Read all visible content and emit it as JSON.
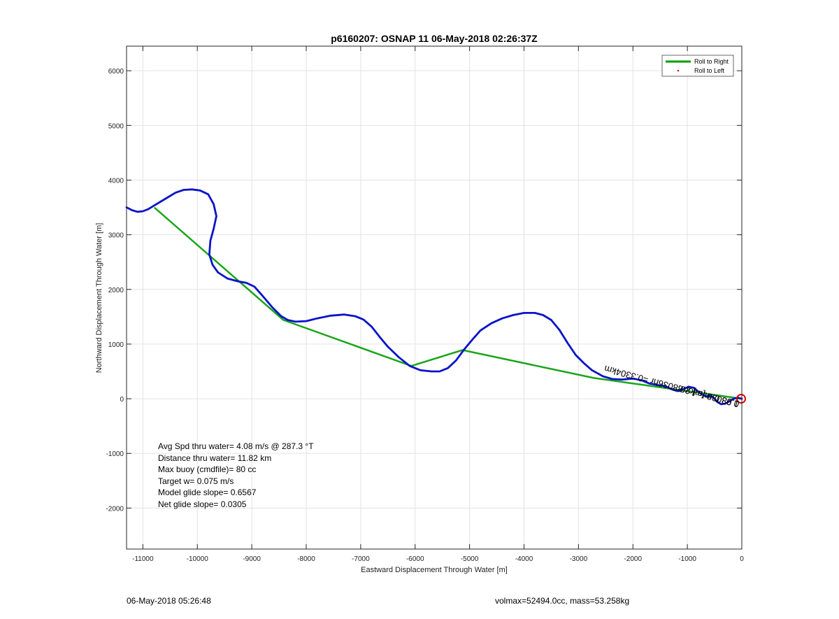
{
  "chart_data": {
    "type": "line",
    "title": "p6160207: OSNAP 11 06-May-2018 02:26:37Z",
    "xlabel": "Eastward Displacement Through Water [m]",
    "ylabel": "Northward Displacement Through Water [m]",
    "xlim": [
      -11300,
      0
    ],
    "ylim": [
      -2750,
      6450
    ],
    "xticks": [
      -11000,
      -10000,
      -9000,
      -8000,
      -7000,
      -6000,
      -5000,
      -4000,
      -3000,
      -2000,
      -1000,
      0
    ],
    "xtick_labels": [
      "-11000",
      "-10000",
      "-9000",
      "-8000",
      "-7000",
      "-6000",
      "-5000",
      "-4000",
      "-3000",
      "-2000",
      "-1000",
      "0"
    ],
    "yticks": [
      -2000,
      -1000,
      0,
      1000,
      2000,
      3000,
      4000,
      5000,
      6000
    ],
    "ytick_labels": [
      "-2000",
      "-1000",
      "0",
      "1000",
      "2000",
      "3000",
      "4000",
      "5000",
      "6000"
    ],
    "grid": true,
    "legend_position": "top-right",
    "legend": [
      {
        "label": "Roll to Right",
        "color": "#00a000",
        "marker": "line"
      },
      {
        "label": "Roll to Left",
        "color": "#ff0000",
        "marker": "dot"
      }
    ],
    "series": [
      {
        "name": "Roll to Right",
        "color": "#1aa51a",
        "points": [
          [
            -10780,
            3490
          ],
          [
            -8420,
            1440
          ],
          [
            -6070,
            600
          ],
          [
            -5130,
            890
          ],
          [
            -2720,
            380
          ],
          [
            0,
            0
          ]
        ]
      },
      {
        "color": "#0a14c8",
        "points": [
          [
            -11300,
            3500
          ],
          [
            -11200,
            3450
          ],
          [
            -11100,
            3420
          ],
          [
            -11000,
            3430
          ],
          [
            -10900,
            3470
          ],
          [
            -10800,
            3530
          ],
          [
            -10700,
            3590
          ],
          [
            -10550,
            3680
          ],
          [
            -10400,
            3770
          ],
          [
            -10250,
            3820
          ],
          [
            -10100,
            3830
          ],
          [
            -9950,
            3810
          ],
          [
            -9800,
            3740
          ],
          [
            -9700,
            3560
          ],
          [
            -9650,
            3340
          ],
          [
            -9700,
            3110
          ],
          [
            -9760,
            2890
          ],
          [
            -9780,
            2640
          ],
          [
            -9720,
            2450
          ],
          [
            -9620,
            2310
          ],
          [
            -9450,
            2200
          ],
          [
            -9260,
            2150
          ],
          [
            -9100,
            2120
          ],
          [
            -8950,
            2050
          ],
          [
            -8800,
            1880
          ],
          [
            -8620,
            1670
          ],
          [
            -8460,
            1510
          ],
          [
            -8340,
            1440
          ],
          [
            -8200,
            1410
          ],
          [
            -8000,
            1420
          ],
          [
            -7800,
            1470
          ],
          [
            -7550,
            1520
          ],
          [
            -7300,
            1540
          ],
          [
            -7100,
            1510
          ],
          [
            -6950,
            1450
          ],
          [
            -6800,
            1320
          ],
          [
            -6650,
            1130
          ],
          [
            -6500,
            950
          ],
          [
            -6300,
            760
          ],
          [
            -6100,
            600
          ],
          [
            -5900,
            520
          ],
          [
            -5700,
            500
          ],
          [
            -5550,
            500
          ],
          [
            -5400,
            560
          ],
          [
            -5250,
            700
          ],
          [
            -5100,
            900
          ],
          [
            -4950,
            1080
          ],
          [
            -4800,
            1250
          ],
          [
            -4600,
            1380
          ],
          [
            -4400,
            1470
          ],
          [
            -4200,
            1530
          ],
          [
            -4000,
            1570
          ],
          [
            -3800,
            1570
          ],
          [
            -3650,
            1530
          ],
          [
            -3500,
            1440
          ],
          [
            -3350,
            1260
          ],
          [
            -3200,
            1020
          ],
          [
            -3050,
            800
          ],
          [
            -2900,
            650
          ],
          [
            -2750,
            520
          ],
          [
            -2550,
            410
          ],
          [
            -2380,
            360
          ],
          [
            -2200,
            350
          ],
          [
            -2000,
            370
          ],
          [
            -1850,
            340
          ],
          [
            -1700,
            280
          ],
          [
            -1550,
            250
          ],
          [
            -1400,
            230
          ],
          [
            -1280,
            170
          ],
          [
            -1180,
            140
          ],
          [
            -1080,
            170
          ],
          [
            -980,
            220
          ],
          [
            -880,
            200
          ],
          [
            -800,
            130
          ],
          [
            -730,
            80
          ],
          [
            -660,
            40
          ],
          [
            -590,
            60
          ],
          [
            -520,
            20
          ],
          [
            -450,
            -60
          ],
          [
            -380,
            -100
          ],
          [
            -300,
            -90
          ],
          [
            -220,
            -40
          ],
          [
            -150,
            0
          ],
          [
            -80,
            20
          ],
          [
            0,
            0
          ]
        ]
      }
    ],
    "end_marker": {
      "x": 0,
      "y": 0,
      "color": "#dd0000"
    },
    "rotated_annotation": "1.0303m/s for0.8036hr =0.3304km",
    "rotated_clutter": "0.98 0.8 [m] 2.8",
    "annotations": [
      "Avg Spd thru water=  4.08 m/s @ 287.3 °T",
      "Distance thru water= 11.82 km",
      "Max buoy (cmdfile)= 80 cc",
      "Target w= 0.075 m/s",
      "Model glide slope= 0.6567",
      "Net glide slope= 0.0305"
    ]
  },
  "footer": {
    "timestamp": "06-May-2018 05:26:48",
    "info": "volmax=52494.0cc, mass=53.258kg"
  }
}
